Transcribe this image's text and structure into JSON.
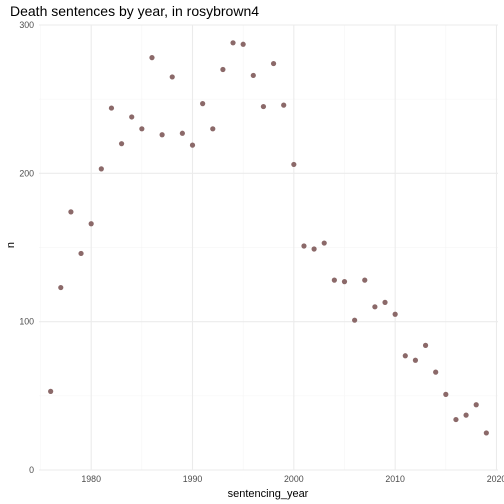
{
  "chart_data": {
    "type": "scatter",
    "title": "Death sentences by year, in rosybrown4",
    "xlabel": "sentencing_year",
    "ylabel": "n",
    "xlim": [
      1974.85,
      2020.15
    ],
    "ylim": [
      0,
      300
    ],
    "x_ticks": [
      1980,
      1990,
      2000,
      2010,
      2020
    ],
    "y_ticks": [
      0,
      100,
      200,
      300
    ],
    "grid": true,
    "legend": "none",
    "point_color": "#8B6969",
    "series": [
      {
        "x": [
          1976,
          1977,
          1978,
          1979,
          1980,
          1981,
          1982,
          1983,
          1984,
          1985,
          1986,
          1987,
          1988,
          1989,
          1990,
          1991,
          1992,
          1993,
          1994,
          1995,
          1996,
          1997,
          1998,
          1999,
          2000,
          2001,
          2002,
          2003,
          2004,
          2005,
          2006,
          2007,
          2008,
          2009,
          2010,
          2011,
          2012,
          2013,
          2014,
          2015,
          2016,
          2017,
          2018,
          2019
        ],
        "y": [
          53,
          123,
          174,
          146,
          166,
          203,
          244,
          220,
          238,
          230,
          278,
          226,
          265,
          227,
          219,
          247,
          230,
          270,
          288,
          287,
          266,
          245,
          274,
          246,
          206,
          151,
          149,
          153,
          128,
          127,
          101,
          128,
          110,
          113,
          105,
          77,
          74,
          84,
          66,
          51,
          34,
          37,
          44,
          25
        ]
      }
    ]
  }
}
